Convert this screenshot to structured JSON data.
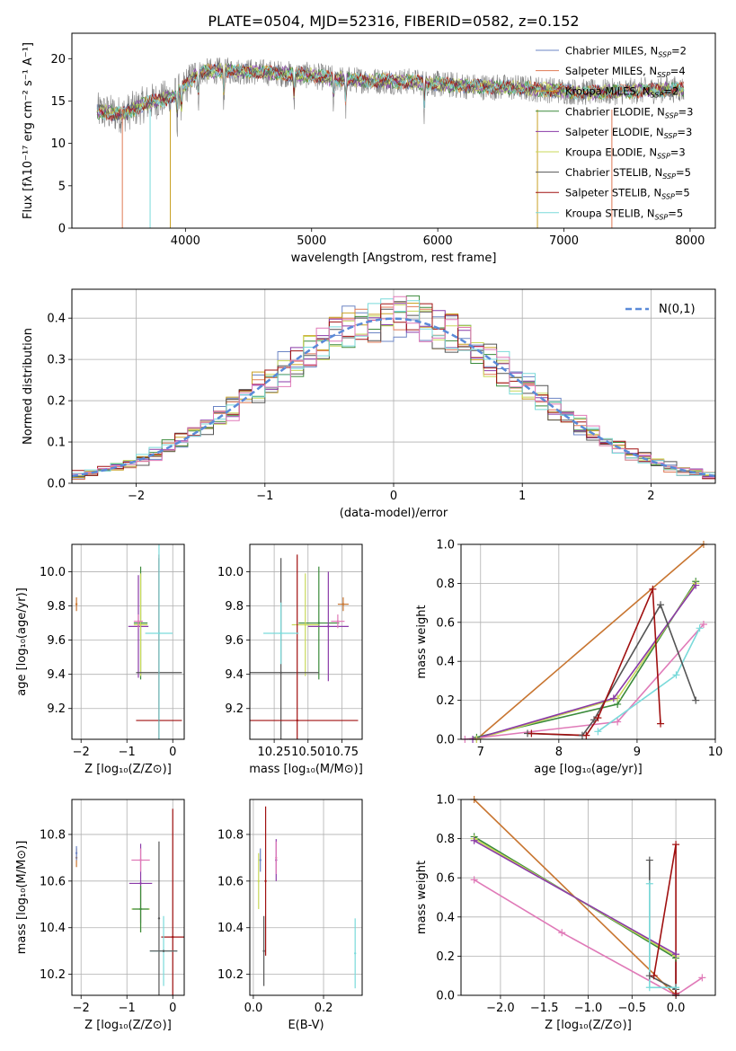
{
  "figure": {
    "title": "PLATE=0504, MJD=52316, FIBERID=0582, z=0.152"
  },
  "colors": {
    "Chabrier MILES": "#6b84c4",
    "Salpeter MILES": "#e07a55",
    "Kroupa MILES": "#c9a226",
    "Chabrier ELODIE": "#3a8a3a",
    "Salpeter ELODIE": "#8a3aa8",
    "Kroupa ELODIE": "#c8d85a",
    "Chabrier STELIB": "#555555",
    "Salpeter STELIB": "#a01010",
    "Kroupa STELIB": "#7adada",
    "model_a": "#e07ab8",
    "model_b": "#c87530",
    "normal": "#5a8ad8",
    "data": "#808080"
  },
  "chart_data": [
    {
      "type": "line",
      "id": "spectrum",
      "xlabel": "wavelength [Angstrom, rest frame]",
      "ylabel": "Flux [fλ10⁻¹⁷ erg cm⁻² s⁻¹ A⁻¹]",
      "xlim": [
        3100,
        8200
      ],
      "ylim": [
        0,
        23
      ],
      "xticks": [
        4000,
        5000,
        6000,
        7000,
        8000
      ],
      "yticks": [
        0,
        5,
        10,
        15,
        20
      ],
      "grid": false,
      "legend_position": "top-right",
      "legend": [
        {
          "label": "Chabrier MILES, N",
          "sub": "SSP",
          "suffix": "=2",
          "color": "#6b84c4"
        },
        {
          "label": "Salpeter MILES, N",
          "sub": "SSP",
          "suffix": "=4",
          "color": "#e07a55"
        },
        {
          "label": "Kroupa MILES, N",
          "sub": "SSP",
          "suffix": "=2",
          "color": "#c9a226"
        },
        {
          "label": "Chabrier ELODIE, N",
          "sub": "SSP",
          "suffix": "=3",
          "color": "#3a8a3a"
        },
        {
          "label": "Salpeter ELODIE, N",
          "sub": "SSP",
          "suffix": "=3",
          "color": "#8a3aa8"
        },
        {
          "label": "Kroupa ELODIE, N",
          "sub": "SSP",
          "suffix": "=3",
          "color": "#c8d85a"
        },
        {
          "label": "Chabrier STELIB, N",
          "sub": "SSP",
          "suffix": "=5",
          "color": "#555555"
        },
        {
          "label": "Salpeter STELIB, N",
          "sub": "SSP",
          "suffix": "=5",
          "color": "#a01010"
        },
        {
          "label": "Kroupa STELIB, N",
          "sub": "SSP",
          "suffix": "=5",
          "color": "#7adada"
        }
      ],
      "continuum_knots": [
        [
          3300,
          13.8
        ],
        [
          3500,
          13.4
        ],
        [
          3700,
          14.8
        ],
        [
          3900,
          15.5
        ],
        [
          4000,
          16.8
        ],
        [
          4100,
          18.4
        ],
        [
          4300,
          18.6
        ],
        [
          4600,
          18.4
        ],
        [
          5000,
          18.0
        ],
        [
          5200,
          17.6
        ],
        [
          5500,
          17.4
        ],
        [
          5800,
          17.3
        ],
        [
          6000,
          17.0
        ],
        [
          6300,
          16.7
        ],
        [
          6600,
          16.6
        ],
        [
          6900,
          16.3
        ],
        [
          7200,
          16.0
        ],
        [
          7600,
          16.2
        ],
        [
          7900,
          16.4
        ]
      ],
      "data_range": [
        3300,
        7950
      ],
      "model_range": [
        3300,
        7950
      ],
      "absorption_lines": [
        3934,
        3969,
        4102,
        4304,
        4861,
        5175,
        5270,
        5893
      ],
      "spikes": [
        {
          "x": 3500,
          "color": "#e07a55"
        },
        {
          "x": 3720,
          "color": "#7adada"
        },
        {
          "x": 3880,
          "color": "#c9a226"
        },
        {
          "x": 6790,
          "color": "#c9a226"
        },
        {
          "x": 7380,
          "color": "#e07a55"
        }
      ]
    },
    {
      "type": "histogram",
      "id": "residuals",
      "xlabel": "(data-model)/error",
      "ylabel": "Normed distribution",
      "xlim": [
        -2.5,
        2.5
      ],
      "ylim": [
        0,
        0.47
      ],
      "xticks": [
        -2,
        -1,
        0,
        1,
        2
      ],
      "yticks": [
        0.0,
        0.1,
        0.2,
        0.3,
        0.4
      ],
      "grid": true,
      "bin_width": 0.1,
      "bin_start": -2.5,
      "series_colors": [
        "#6b84c4",
        "#e07a55",
        "#c9a226",
        "#3a8a3a",
        "#8a3aa8",
        "#c8d85a",
        "#555555",
        "#a01010",
        "#7adada",
        "#e07ab8"
      ],
      "normal_curve": {
        "mu": 0,
        "sigma": 1,
        "label": "N(0,1)",
        "color": "#5a8ad8",
        "dashed": true
      },
      "legend_position": "top-right"
    },
    {
      "type": "errorbar",
      "id": "age-vs-Z",
      "xlabel": "Z [log₁₀(Z/Z⊙)]",
      "ylabel": "age [log₁₀(age/yr)]",
      "xlim": [
        -2.2,
        0.25
      ],
      "ylim": [
        9.02,
        10.16
      ],
      "xticks": [
        -2,
        -1,
        0
      ],
      "yticks": [
        9.2,
        9.4,
        9.6,
        9.8,
        10.0
      ],
      "grid": true,
      "points": [
        {
          "x": -2.1,
          "y": 9.81,
          "xerr": 0,
          "yerr": 0.04,
          "color": "#c87530"
        },
        {
          "x": -0.7,
          "y": 9.7,
          "xerr": 0.15,
          "yerr": 0.33,
          "color": "#3a8a3a"
        },
        {
          "x": -0.75,
          "y": 9.68,
          "xerr": 0.22,
          "yerr": 0.3,
          "color": "#8a3aa8"
        },
        {
          "x": -0.7,
          "y": 9.69,
          "xerr": 0.15,
          "yerr": 0.3,
          "color": "#c8d85a"
        },
        {
          "x": -0.75,
          "y": 9.71,
          "xerr": 0.1,
          "yerr": 0.04,
          "color": "#e07ab8"
        },
        {
          "x": -0.3,
          "y": 9.41,
          "xerr": 0.5,
          "yerr": 0.67,
          "color": "#555555"
        },
        {
          "x": -0.3,
          "y": 9.13,
          "xerr": 0.5,
          "yerr": 0.97,
          "color": "#a01010"
        },
        {
          "x": -0.3,
          "y": 9.64,
          "xerr": 0.3,
          "yerr": 0.7,
          "color": "#7adada"
        }
      ]
    },
    {
      "type": "errorbar",
      "id": "age-vs-mass",
      "xlabel": "mass [log₁₀(M/M⊙)]",
      "ylabel": "",
      "xlim": [
        10.07,
        10.9
      ],
      "ylim": [
        9.02,
        10.16
      ],
      "xticks": [
        10.25,
        10.5,
        10.75
      ],
      "yticks": [
        9.2,
        9.4,
        9.6,
        9.8,
        10.0
      ],
      "xticklabels": [
        "10.25",
        "10.50",
        "10.75"
      ],
      "grid": true,
      "points": [
        {
          "x": 10.76,
          "y": 9.81,
          "xerr": 0.04,
          "yerr": 0.04,
          "color": "#c87530"
        },
        {
          "x": 10.58,
          "y": 9.7,
          "xerr": 0.15,
          "yerr": 0.33,
          "color": "#3a8a3a"
        },
        {
          "x": 10.65,
          "y": 9.68,
          "xerr": 0.15,
          "yerr": 0.32,
          "color": "#8a3aa8"
        },
        {
          "x": 10.48,
          "y": 9.69,
          "xerr": 0.1,
          "yerr": 0.3,
          "color": "#c8d85a"
        },
        {
          "x": 10.72,
          "y": 9.71,
          "xerr": 0.05,
          "yerr": 0.04,
          "color": "#e07ab8"
        },
        {
          "x": 10.3,
          "y": 9.41,
          "xerr": 0.28,
          "yerr": 0.67,
          "color": "#555555"
        },
        {
          "x": 10.42,
          "y": 9.13,
          "xerr": 0.45,
          "yerr": 0.97,
          "color": "#a01010"
        },
        {
          "x": 10.3,
          "y": 9.64,
          "xerr": 0.13,
          "yerr": 0.18,
          "color": "#7adada"
        }
      ]
    },
    {
      "type": "line",
      "id": "massweight-vs-age",
      "xlabel": "age [log₁₀(age/yr)]",
      "ylabel": "mass weight",
      "xlim": [
        6.75,
        10.0
      ],
      "ylim": [
        0,
        1.0
      ],
      "xticks": [
        7,
        8,
        9,
        10
      ],
      "yticks": [
        0.0,
        0.2,
        0.4,
        0.6,
        0.8,
        1.0
      ],
      "grid": true,
      "series": [
        {
          "color": "#c87530",
          "x": [
            6.95,
            9.85
          ],
          "y": [
            0.0,
            1.0
          ]
        },
        {
          "color": "#3a8a3a",
          "x": [
            6.95,
            8.75,
            9.75
          ],
          "y": [
            0.01,
            0.18,
            0.81
          ]
        },
        {
          "color": "#c8d85a",
          "x": [
            6.95,
            8.75,
            9.75
          ],
          "y": [
            0.0,
            0.21,
            0.8
          ]
        },
        {
          "color": "#8a3aa8",
          "x": [
            6.9,
            8.7,
            9.75
          ],
          "y": [
            0.0,
            0.21,
            0.79
          ]
        },
        {
          "color": "#e07ab8",
          "x": [
            6.8,
            8.75,
            9.85
          ],
          "y": [
            0.0,
            0.09,
            0.59
          ]
        },
        {
          "color": "#7adada",
          "x": [
            8.5,
            9.5,
            9.8
          ],
          "y": [
            0.04,
            0.33,
            0.57
          ]
        },
        {
          "color": "#555555",
          "x": [
            7.6,
            8.3,
            8.45,
            9.3,
            9.75
          ],
          "y": [
            0.03,
            0.02,
            0.1,
            0.69,
            0.2
          ]
        },
        {
          "color": "#a01010",
          "x": [
            7.65,
            8.35,
            8.5,
            9.2,
            9.3
          ],
          "y": [
            0.03,
            0.02,
            0.11,
            0.77,
            0.08
          ]
        }
      ]
    },
    {
      "type": "errorbar",
      "id": "mass-vs-Z",
      "xlabel": "Z [log₁₀(Z/Z⊙)]",
      "ylabel": "mass [log₁₀(M/M⊙)]",
      "xlim": [
        -2.2,
        0.25
      ],
      "ylim": [
        10.11,
        10.95
      ],
      "xticks": [
        -2,
        -1,
        0
      ],
      "yticks": [
        10.2,
        10.4,
        10.6,
        10.8
      ],
      "grid": true,
      "points": [
        {
          "x": -2.1,
          "y": 10.7,
          "xerr": 0,
          "yerr": 0.04,
          "color": "#c87530"
        },
        {
          "x": -2.1,
          "y": 10.72,
          "xerr": 0,
          "yerr": 0.03,
          "color": "#6b84c4"
        },
        {
          "x": -0.7,
          "y": 10.59,
          "xerr": 0.25,
          "yerr": 0.17,
          "color": "#8a3aa8"
        },
        {
          "x": -0.7,
          "y": 10.48,
          "xerr": 0.2,
          "yerr": 0.1,
          "color": "#c8d85a"
        },
        {
          "x": -0.7,
          "y": 10.48,
          "xerr": 0.18,
          "yerr": 0.1,
          "color": "#3a8a3a"
        },
        {
          "x": -0.7,
          "y": 10.69,
          "xerr": 0.2,
          "yerr": 0.05,
          "color": "#e07ab8"
        },
        {
          "x": -0.3,
          "y": 10.44,
          "xerr": 0.0,
          "yerr": 0.33,
          "color": "#555555"
        },
        {
          "x": 0.0,
          "y": 10.36,
          "xerr": 0.25,
          "yerr": 0.55,
          "color": "#a01010"
        },
        {
          "x": -0.2,
          "y": 10.3,
          "xerr": 0.3,
          "yerr": 0.15,
          "color": "#7adada"
        },
        {
          "x": -0.2,
          "y": 10.3,
          "xerr": 0.3,
          "yerr": 0.0,
          "color": "#555555"
        }
      ]
    },
    {
      "type": "errorbar",
      "id": "mass-vs-EBV",
      "xlabel": "E(B-V)",
      "ylabel": "",
      "xlim": [
        -0.01,
        0.31
      ],
      "ylim": [
        10.11,
        10.95
      ],
      "xticks": [
        0.0,
        0.2
      ],
      "yticks": [
        10.2,
        10.4,
        10.6,
        10.8
      ],
      "xticklabels": [
        "0.0",
        "0.2"
      ],
      "grid": true,
      "points": [
        {
          "x": 0.015,
          "y": 10.6,
          "xerr": 0,
          "yerr": 0.12,
          "color": "#c8d85a"
        },
        {
          "x": 0.02,
          "y": 10.69,
          "xerr": 0,
          "yerr": 0.05,
          "color": "#6b84c4"
        },
        {
          "x": 0.03,
          "y": 10.3,
          "xerr": 0,
          "yerr": 0.15,
          "color": "#555555"
        },
        {
          "x": 0.035,
          "y": 10.6,
          "xerr": 0,
          "yerr": 0.32,
          "color": "#a01010"
        },
        {
          "x": 0.065,
          "y": 10.69,
          "xerr": 0,
          "yerr": 0.09,
          "color": "#8a3aa8"
        },
        {
          "x": 0.065,
          "y": 10.7,
          "xerr": 0,
          "yerr": 0.07,
          "color": "#e07ab8"
        },
        {
          "x": 0.29,
          "y": 10.29,
          "xerr": 0,
          "yerr": 0.15,
          "color": "#7adada"
        }
      ]
    },
    {
      "type": "line",
      "id": "massweight-vs-Z",
      "xlabel": "Z [log₁₀(Z/Z⊙)]",
      "ylabel": "mass weight",
      "xlim": [
        -2.45,
        0.45
      ],
      "ylim": [
        0,
        1.0
      ],
      "xticks": [
        -2.0,
        -1.5,
        -1.0,
        -0.5,
        0.0
      ],
      "xticklabels": [
        "−2.0",
        "−1.5",
        "−1.0",
        "−0.5",
        "0.0"
      ],
      "yticks": [
        0.0,
        0.2,
        0.4,
        0.6,
        0.8,
        1.0
      ],
      "grid": true,
      "series": [
        {
          "color": "#c87530",
          "x": [
            -2.3,
            0.0
          ],
          "y": [
            1.0,
            0.0
          ]
        },
        {
          "color": "#3a8a3a",
          "x": [
            -2.3,
            0.0,
            0.0
          ],
          "y": [
            0.81,
            0.19,
            0.0
          ]
        },
        {
          "color": "#c8d85a",
          "x": [
            -2.3,
            0.0,
            0.0
          ],
          "y": [
            0.8,
            0.2,
            0.0
          ]
        },
        {
          "color": "#8a3aa8",
          "x": [
            -2.3,
            0.0,
            0.0
          ],
          "y": [
            0.79,
            0.21,
            0.0
          ]
        },
        {
          "color": "#e07ab8",
          "x": [
            -2.3,
            -1.3,
            0.0,
            0.3
          ],
          "y": [
            0.59,
            0.32,
            0.0,
            0.09
          ]
        },
        {
          "color": "#555555",
          "x": [
            -0.3,
            -0.3,
            0.0,
            0.0
          ],
          "y": [
            0.69,
            0.1,
            0.03,
            0.0
          ]
        },
        {
          "color": "#7adada",
          "x": [
            -0.3,
            -0.3,
            0.0
          ],
          "y": [
            0.57,
            0.04,
            0.04
          ]
        },
        {
          "color": "#a01010",
          "x": [
            -0.25,
            0.0,
            0.0
          ],
          "y": [
            0.1,
            0.77,
            0.01
          ]
        }
      ]
    }
  ]
}
